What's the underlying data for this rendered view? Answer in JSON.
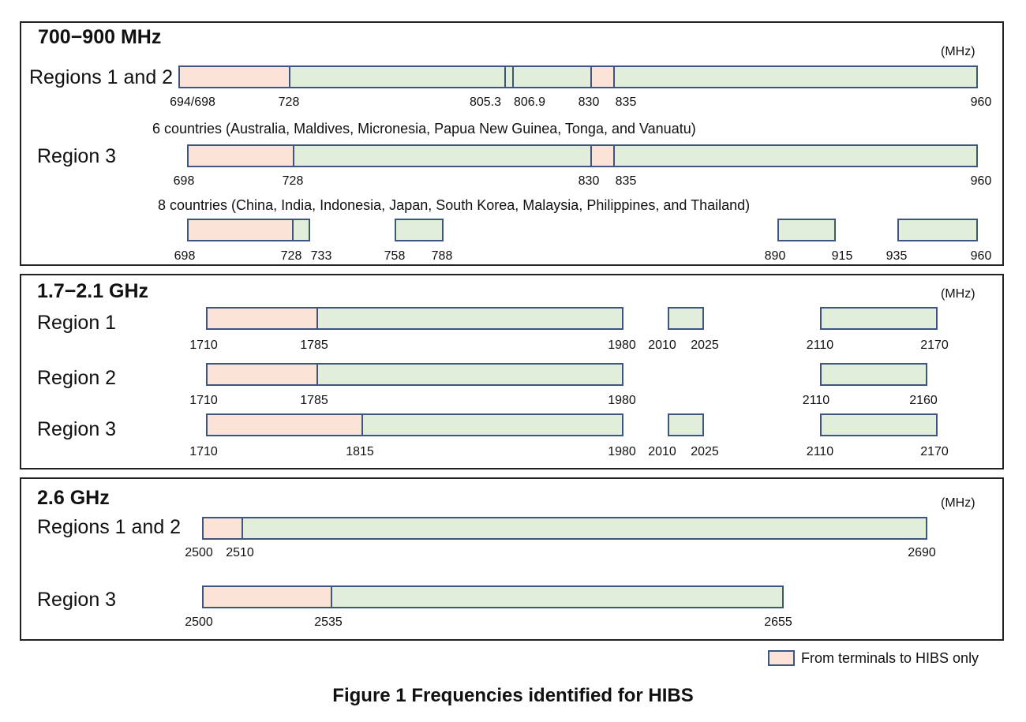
{
  "panels": [
    {
      "title": "700−900 MHz",
      "unit": "(MHz)"
    },
    {
      "title": "1.7−2.1 GHz",
      "unit": "(MHz)"
    },
    {
      "title": "2.6 GHz",
      "unit": "(MHz)"
    }
  ],
  "rows": [
    {
      "region": "Regions 1 and 2",
      "segments": [
        {
          "from": "694/698",
          "to": "728",
          "direction": "up"
        },
        {
          "from": "728",
          "to": "805.3",
          "direction": "both"
        },
        {
          "from": "805.3",
          "to": "806.9",
          "direction": "both"
        },
        {
          "from": "806.9",
          "to": "830",
          "direction": "both"
        },
        {
          "from": "830",
          "to": "835",
          "direction": "up"
        },
        {
          "from": "835",
          "to": "960",
          "direction": "both"
        }
      ],
      "ticks": [
        "694/698",
        "728",
        "805.3",
        "806.9",
        "830",
        "835",
        "960"
      ]
    },
    {
      "region": "Region 3",
      "note": "6 countries (Australia, Maldives, Micronesia, Papua New Guinea, Tonga, and Vanuatu)",
      "segments": [
        {
          "from": "698",
          "to": "728",
          "direction": "up"
        },
        {
          "from": "728",
          "to": "830",
          "direction": "both"
        },
        {
          "from": "830",
          "to": "835",
          "direction": "up"
        },
        {
          "from": "835",
          "to": "960",
          "direction": "both"
        }
      ],
      "ticks": [
        "698",
        "728",
        "830",
        "835",
        "960"
      ]
    },
    {
      "region": "",
      "note": "8 countries (China, India, Indonesia, Japan, South Korea, Malaysia, Philippines, and Thailand)",
      "segments": [
        {
          "from": "698",
          "to": "728",
          "direction": "up"
        },
        {
          "from": "728",
          "to": "733",
          "direction": "both"
        },
        {
          "from": "758",
          "to": "788",
          "direction": "both"
        },
        {
          "from": "890",
          "to": "915",
          "direction": "both"
        },
        {
          "from": "935",
          "to": "960",
          "direction": "both"
        }
      ],
      "ticks": [
        "698",
        "728",
        "733",
        "758",
        "788",
        "890",
        "915",
        "935",
        "960"
      ]
    },
    {
      "region": "Region 1",
      "segments": [
        {
          "from": "1710",
          "to": "1785",
          "direction": "up"
        },
        {
          "from": "1785",
          "to": "1980",
          "direction": "both"
        },
        {
          "from": "2010",
          "to": "2025",
          "direction": "both"
        },
        {
          "from": "2110",
          "to": "2170",
          "direction": "both"
        }
      ],
      "ticks": [
        "1710",
        "1785",
        "1980",
        "2010",
        "2025",
        "2110",
        "2170"
      ]
    },
    {
      "region": "Region 2",
      "segments": [
        {
          "from": "1710",
          "to": "1785",
          "direction": "up"
        },
        {
          "from": "1785",
          "to": "1980",
          "direction": "both"
        },
        {
          "from": "2110",
          "to": "2160",
          "direction": "both"
        }
      ],
      "ticks": [
        "1710",
        "1785",
        "1980",
        "2110",
        "2160"
      ]
    },
    {
      "region": "Region 3",
      "segments": [
        {
          "from": "1710",
          "to": "1815",
          "direction": "up"
        },
        {
          "from": "1815",
          "to": "1980",
          "direction": "both"
        },
        {
          "from": "2010",
          "to": "2025",
          "direction": "both"
        },
        {
          "from": "2110",
          "to": "2170",
          "direction": "both"
        }
      ],
      "ticks": [
        "1710",
        "1815",
        "1980",
        "2010",
        "2025",
        "2110",
        "2170"
      ]
    },
    {
      "region": "Regions 1 and 2",
      "segments": [
        {
          "from": "2500",
          "to": "2510",
          "direction": "up"
        },
        {
          "from": "2510",
          "to": "2690",
          "direction": "both"
        }
      ],
      "ticks": [
        "2500",
        "2510",
        "2690"
      ]
    },
    {
      "region": "Region 3",
      "segments": [
        {
          "from": "2500",
          "to": "2535",
          "direction": "up"
        },
        {
          "from": "2535",
          "to": "2655",
          "direction": "both"
        }
      ],
      "ticks": [
        "2500",
        "2535",
        "2655"
      ]
    }
  ],
  "legend": {
    "label": "From terminals to HIBS only",
    "color": "#fbe3d8"
  },
  "colors": {
    "uplink_only": "#fbe3d8",
    "both_directions": "#e1efda",
    "outline": "#3d5580"
  },
  "caption": "Figure 1  Frequencies identified for HIBS"
}
